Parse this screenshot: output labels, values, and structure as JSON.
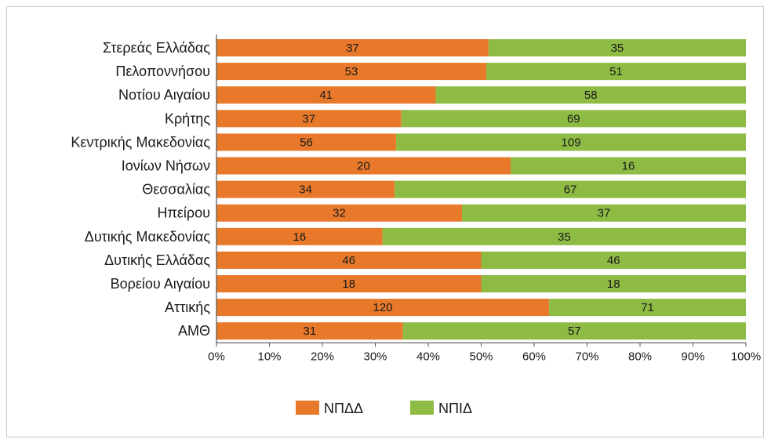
{
  "chart_data": {
    "type": "bar",
    "stacked": "percent",
    "orientation": "horizontal",
    "categories": [
      "Στερεάς Ελλάδας",
      "Πελοποννήσου",
      "Νοτίου Αιγαίου",
      "Κρήτης",
      "Κεντρικής Μακεδονίας",
      "Ιονίων Νήσων",
      "Θεσσαλίας",
      "Ηπείρου",
      "Δυτικής Μακεδονίας",
      "Δυτικής Ελλάδας",
      "Βορείου Αιγαίου",
      "Αττικής",
      "ΑΜΘ"
    ],
    "series": [
      {
        "name": "ΝΠΔΔ",
        "color": "#e8782a",
        "values": [
          37,
          53,
          41,
          37,
          56,
          20,
          34,
          32,
          16,
          46,
          18,
          120,
          31
        ]
      },
      {
        "name": "ΝΠΙΔ",
        "color": "#8dbb44",
        "values": [
          35,
          51,
          58,
          69,
          109,
          16,
          67,
          37,
          35,
          46,
          18,
          71,
          57
        ]
      }
    ],
    "xticks": [
      "0%",
      "10%",
      "20%",
      "30%",
      "40%",
      "50%",
      "60%",
      "70%",
      "80%",
      "90%",
      "100%"
    ],
    "xlim": [
      0,
      100
    ],
    "legend": "bottom-center",
    "grid": false
  }
}
